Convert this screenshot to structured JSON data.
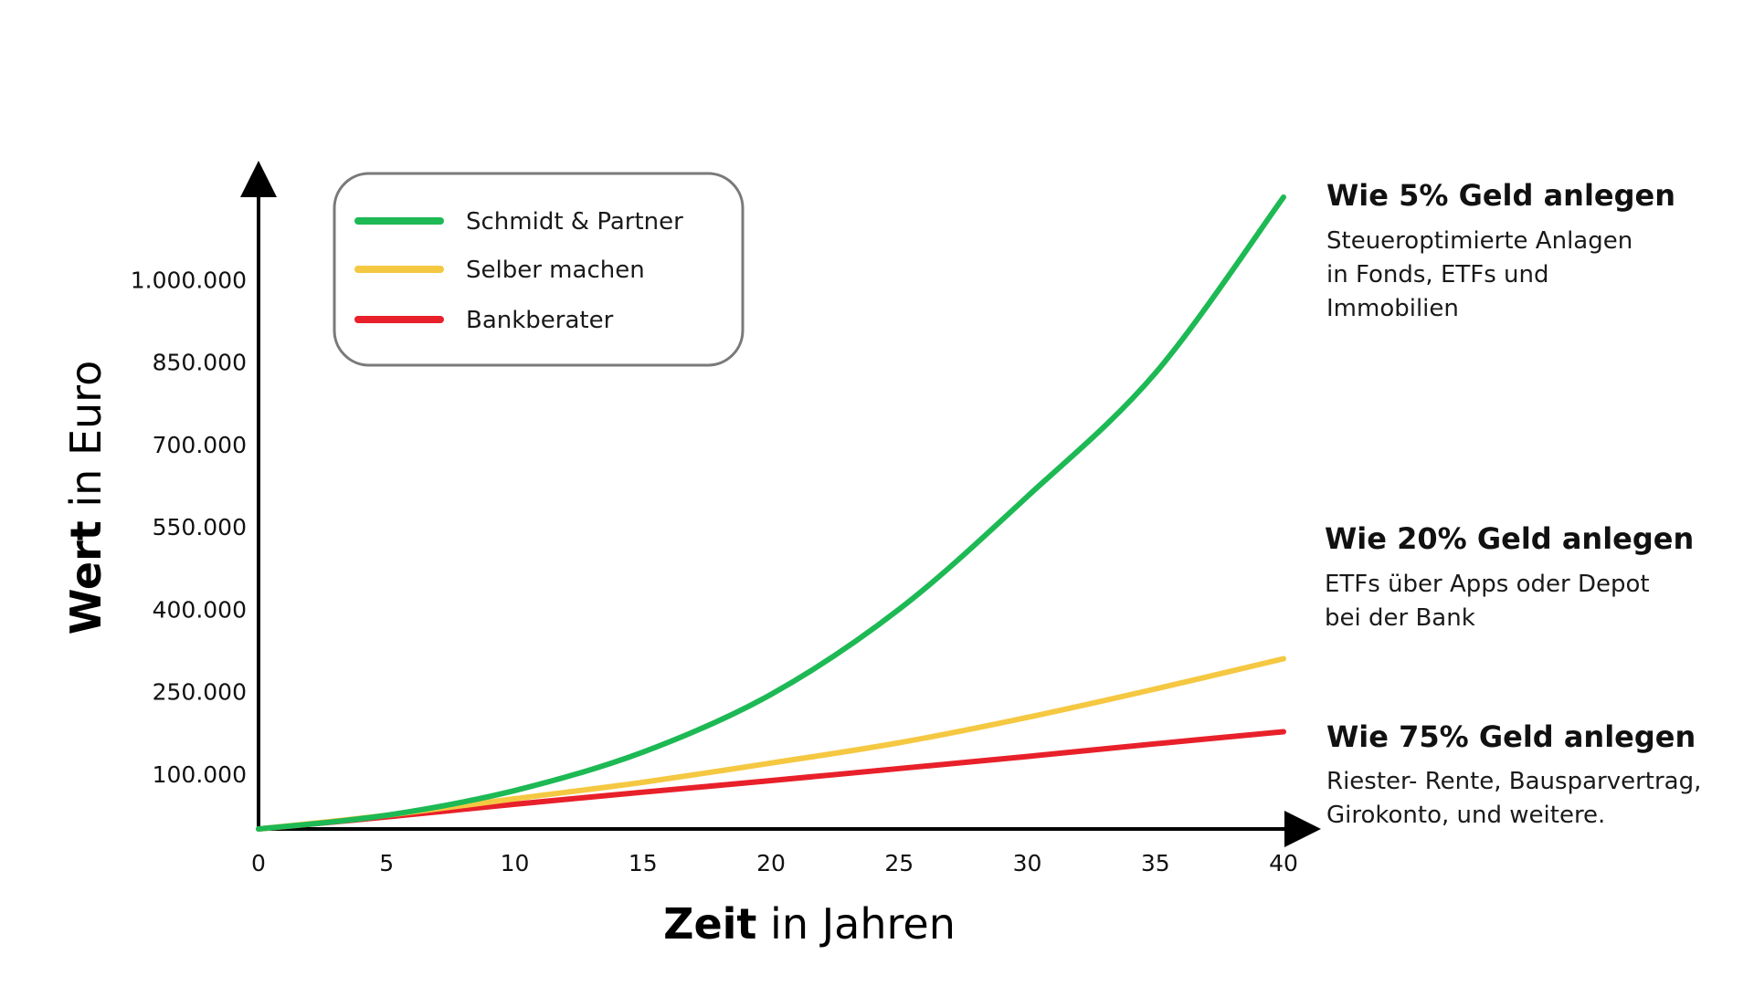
{
  "chart_data": {
    "type": "line",
    "title": "",
    "xlabel_bold": "Zeit",
    "xlabel_rest": " in Jahren",
    "ylabel_bold": "Wert",
    "ylabel_rest": " in Euro",
    "x_ticks": [
      0,
      5,
      10,
      15,
      20,
      25,
      30,
      35,
      40
    ],
    "y_tick_labels": [
      {
        "value": 100000,
        "label": "100.000"
      },
      {
        "value": 250000,
        "label": "250.000"
      },
      {
        "value": 400000,
        "label": "400.000"
      },
      {
        "value": 550000,
        "label": "550.000"
      },
      {
        "value": 700000,
        "label": "700.000"
      },
      {
        "value": 850000,
        "label": "850.000"
      },
      {
        "value": 1000000,
        "label": "1.000.000"
      }
    ],
    "xlim": [
      0,
      40
    ],
    "ylim": [
      0,
      1150000
    ],
    "grid": false,
    "legend_placement": "top-left",
    "series": [
      {
        "name": "Schmidt & Partner",
        "color": "#1db954",
        "x": [
          0,
          5,
          10,
          15,
          20,
          25,
          30,
          35,
          40
        ],
        "values": [
          0,
          25000,
          70000,
          140000,
          245000,
          400000,
          605000,
          830000,
          1150000
        ]
      },
      {
        "name": "Selber machen",
        "color": "#f5c842",
        "x": [
          0,
          5,
          10,
          15,
          20,
          25,
          30,
          35,
          40
        ],
        "values": [
          0,
          25000,
          55000,
          85000,
          120000,
          157000,
          203000,
          255000,
          310000
        ]
      },
      {
        "name": "Bankberater",
        "color": "#e8202a",
        "x": [
          0,
          5,
          10,
          15,
          20,
          25,
          30,
          35,
          40
        ],
        "values": [
          0,
          22000,
          45000,
          67000,
          88000,
          110000,
          132000,
          155000,
          177000
        ]
      }
    ],
    "annotations": [
      {
        "title": "Wie 5% Geld anlegen",
        "lines": [
          "Steueroptimierte Anlagen",
          "in Fonds, ETFs und",
          "Immobilien"
        ]
      },
      {
        "title": "Wie 20% Geld anlegen",
        "lines": [
          "ETFs über Apps oder Depot",
          "bei der Bank"
        ]
      },
      {
        "title": "Wie 75% Geld anlegen",
        "lines": [
          "Riester- Rente, Bausparvertrag,",
          "Girokonto, und weitere."
        ]
      }
    ]
  }
}
